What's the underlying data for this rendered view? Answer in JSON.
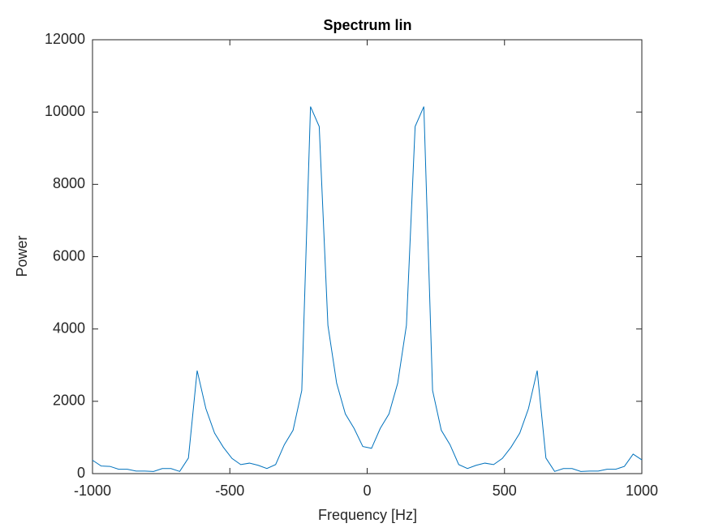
{
  "chart_data": {
    "type": "line",
    "title": "Spectrum lin",
    "xlabel": "Frequency [Hz]",
    "ylabel": "Power",
    "x": [
      -1000,
      -968.3,
      -936.5,
      -904.8,
      -873.0,
      -841.3,
      -809.5,
      -777.8,
      -746.0,
      -714.3,
      -682.5,
      -650.8,
      -619.0,
      -587.3,
      -555.6,
      -523.8,
      -492.1,
      -460.3,
      -428.6,
      -396.8,
      -365.1,
      -333.3,
      -301.6,
      -269.8,
      -238.1,
      -206.3,
      -174.6,
      -142.9,
      -111.1,
      -79.4,
      -47.6,
      -15.9,
      15.9,
      47.6,
      79.4,
      111.1,
      142.9,
      174.6,
      206.3,
      238.1,
      269.8,
      301.6,
      333.3,
      365.1,
      396.8,
      428.6,
      460.3,
      492.1,
      523.8,
      555.6,
      587.3,
      619.0,
      650.8,
      682.5,
      714.3,
      746.0,
      777.8,
      809.5,
      841.3,
      873.0,
      904.8,
      936.5,
      968.3,
      1000
    ],
    "series": [
      {
        "color": "#0072bd",
        "values": [
          370,
          210,
          200,
          120,
          120,
          70,
          70,
          60,
          140,
          140,
          60,
          430,
          2850,
          1800,
          1120,
          730,
          420,
          250,
          290,
          230,
          140,
          250,
          800,
          1200,
          2300,
          10150,
          9600,
          4100,
          2500,
          1650,
          1250,
          750,
          700,
          1250,
          1650,
          2500,
          4100,
          9600,
          10150,
          2300,
          1200,
          800,
          250,
          140,
          230,
          290,
          250,
          420,
          730,
          1120,
          1800,
          2850,
          430,
          60,
          140,
          140,
          60,
          70,
          70,
          120,
          120,
          200,
          540,
          380
        ]
      }
    ],
    "xlim": [
      -1000,
      1000
    ],
    "xticks": [
      -1000,
      -500,
      0,
      500,
      1000
    ],
    "ylim": [
      0,
      12000
    ],
    "yticks": [
      0,
      2000,
      4000,
      6000,
      8000,
      10000,
      12000
    ],
    "grid": false
  }
}
